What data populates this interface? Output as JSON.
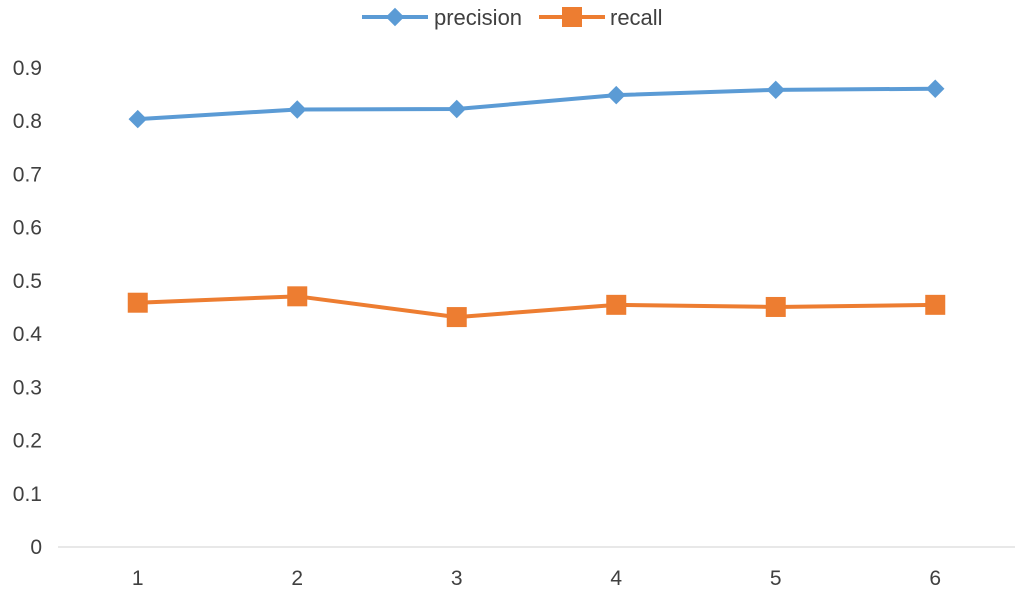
{
  "chart_data": {
    "type": "line",
    "title": "",
    "xlabel": "",
    "ylabel": "",
    "categories": [
      "1",
      "2",
      "3",
      "4",
      "5",
      "6"
    ],
    "ylim": [
      0,
      0.9
    ],
    "yticks": [
      "0",
      "0.1",
      "0.2",
      "0.3",
      "0.4",
      "0.5",
      "0.6",
      "0.7",
      "0.8",
      "0.9"
    ],
    "grid": false,
    "legend_position": "top-center",
    "series": [
      {
        "name": "precision",
        "values": [
          0.804,
          0.822,
          0.823,
          0.849,
          0.859,
          0.861
        ],
        "color": "#5B9BD5",
        "marker": "diamond"
      },
      {
        "name": "recall",
        "values": [
          0.459,
          0.471,
          0.432,
          0.455,
          0.451,
          0.455
        ],
        "color": "#ED7D31",
        "marker": "square"
      }
    ]
  }
}
